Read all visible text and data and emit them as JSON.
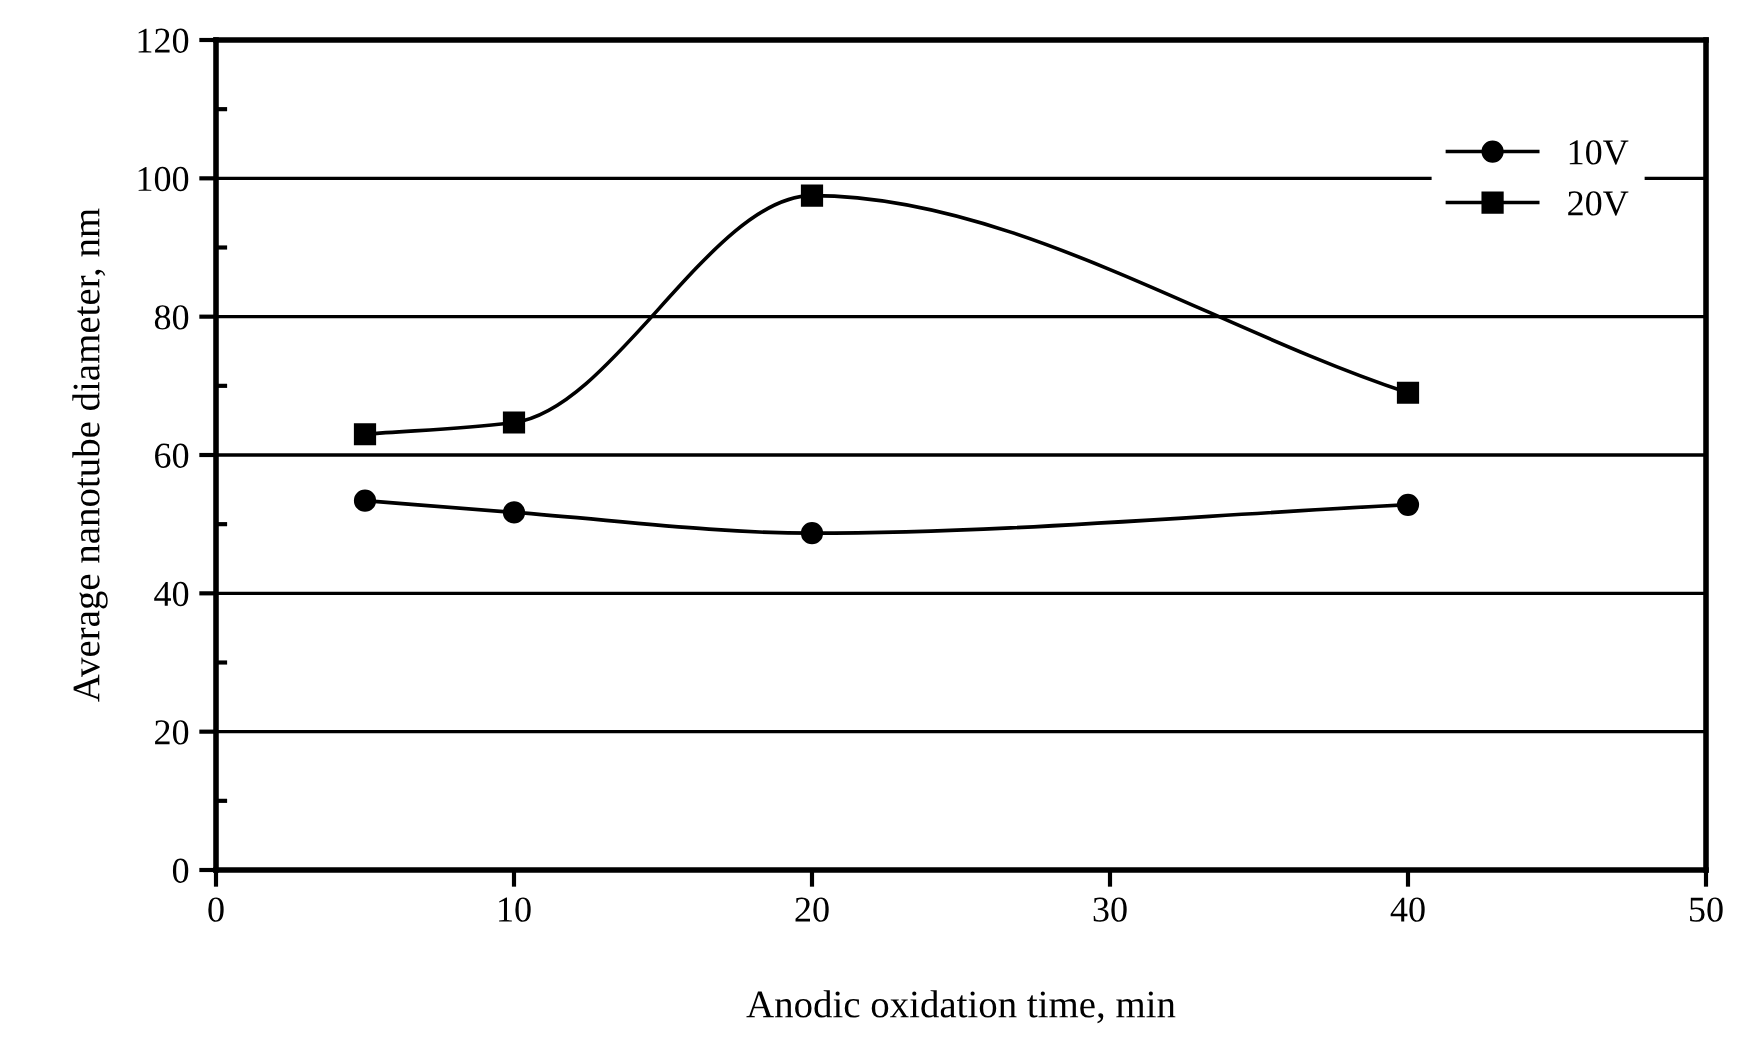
{
  "chart_data": {
    "type": "line",
    "xlabel": "Anodic oxidation time, min",
    "ylabel": "Average nanotube diameter, nm",
    "x": [
      5,
      10,
      20,
      40
    ],
    "series": [
      {
        "name": "10V",
        "color": "#000000",
        "marker": "circle",
        "values": [
          53.4,
          51.7,
          48.7,
          52.8
        ]
      },
      {
        "name": "20V",
        "color": "#000000",
        "marker": "square",
        "values": [
          63.0,
          64.7,
          97.5,
          69.0
        ]
      }
    ],
    "xlim": [
      0,
      50
    ],
    "xticks": [
      0,
      10,
      20,
      30,
      40,
      50
    ],
    "ylim": [
      0,
      120
    ],
    "yticks": [
      0,
      20,
      40,
      60,
      80,
      100,
      120
    ],
    "grid": "y",
    "legend": "top right",
    "line_style": "solid"
  }
}
